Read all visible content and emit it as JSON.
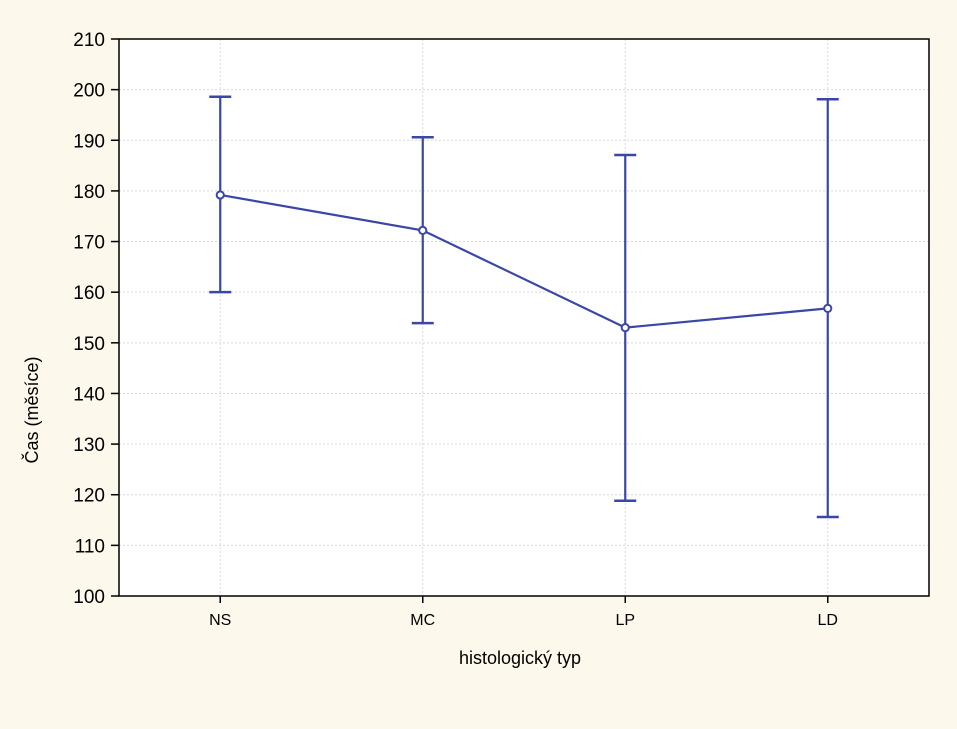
{
  "chart_data": {
    "type": "line",
    "title": "",
    "xlabel": "histologický typ",
    "ylabel": "Čas (měsíce)",
    "categories": [
      "NS",
      "MC",
      "LP",
      "LD"
    ],
    "series": [
      {
        "values": [
          179.2,
          172.2,
          153.0,
          156.8
        ],
        "error_low": [
          160.0,
          153.9,
          118.8,
          115.6
        ],
        "error_high": [
          198.6,
          190.6,
          187.1,
          198.1
        ]
      }
    ],
    "ylim": [
      100,
      210
    ],
    "yticks": [
      100,
      110,
      120,
      130,
      140,
      150,
      160,
      170,
      180,
      190,
      200,
      210
    ],
    "grid": true,
    "colors": {
      "series": "#3b46a6",
      "background": "#fdf8ec",
      "plot_background": "#ffffff",
      "grid": "#d9d9d9"
    }
  }
}
